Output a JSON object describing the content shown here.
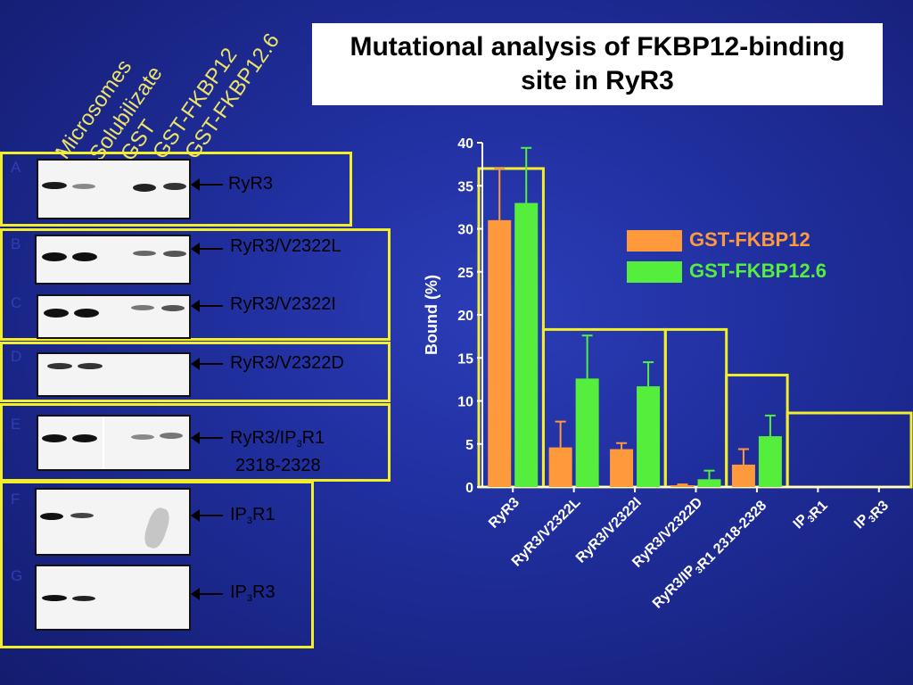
{
  "title": "Mutational analysis of FKBP12-binding site in RyR3",
  "lanes": [
    "Microsomes",
    "Solubilizate",
    "GST",
    "GST-FKBP12",
    "GST-FKBP12.6"
  ],
  "panels": [
    {
      "letter": "A",
      "label": "RyR3"
    },
    {
      "letter": "B",
      "label": "RyR3/V2322L"
    },
    {
      "letter": "C",
      "label": "RyR3/V2322I"
    },
    {
      "letter": "D",
      "label": "RyR3/V2322D"
    },
    {
      "letter": "E",
      "label": "RyR3/IP3R1",
      "label_line2": "2318-2328"
    },
    {
      "letter": "F",
      "label": "IP3R1"
    },
    {
      "letter": "G",
      "label": "IP3R3"
    }
  ],
  "colors": {
    "fkbp12": "#ff9a3c",
    "fkbp126": "#55ee3c",
    "frame": "#f2ee2a"
  },
  "chart_data": {
    "type": "bar",
    "categories": [
      "RyR3",
      "RyR3/V2322L",
      "RyR3/V2322I",
      "RyR3/V2322D",
      "RyR3/IP3R1 2318-2328",
      "IP3R1",
      "IP3R3"
    ],
    "series": [
      {
        "name": "GST-FKBP12",
        "values": [
          31,
          4.6,
          4.4,
          0.2,
          2.6,
          0,
          0
        ],
        "errors": [
          6,
          3,
          0.7,
          0.1,
          1.8,
          0,
          0
        ]
      },
      {
        "name": "GST-FKBP12.6",
        "values": [
          33,
          12.6,
          11.7,
          0.9,
          5.9,
          0,
          0
        ],
        "errors": [
          6.4,
          5,
          2.8,
          1,
          2.4,
          0,
          0
        ]
      }
    ],
    "ylabel": "Bound (%)",
    "xlabel": "",
    "ylim": [
      0,
      40
    ],
    "yticks": [
      0,
      5,
      10,
      15,
      20,
      25,
      30,
      35,
      40
    ],
    "legend_position": "right"
  }
}
